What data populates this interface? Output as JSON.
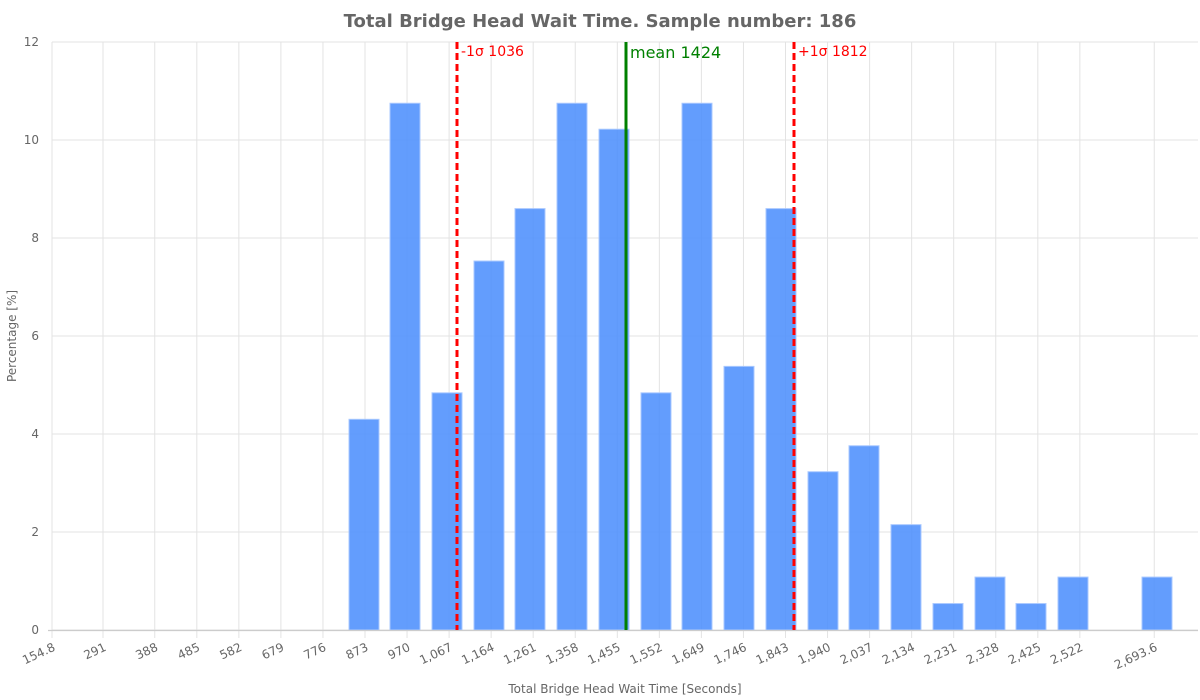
{
  "chart_data": {
    "type": "bar",
    "title": "Total Bridge Head Wait Time. Sample number: 186",
    "xlabel": "Total Bridge Head Wait Time [Seconds]",
    "ylabel": "Percentage [%]",
    "ylim": [
      0,
      12
    ],
    "yticks": [
      "0",
      "2",
      "4",
      "6",
      "8",
      "10",
      "12"
    ],
    "grid": true,
    "legend": null,
    "bar_color": "#4d8ffd",
    "xtick_labels": [
      "154.8",
      "291",
      "388",
      "485",
      "582",
      "679",
      "776",
      "873",
      "970",
      "1,067",
      "1,164",
      "1,261",
      "1,358",
      "1,455",
      "1,552",
      "1,649",
      "1,746",
      "1,843",
      "1,940",
      "2,037",
      "2,134",
      "2,231",
      "2,328",
      "2,425",
      "2,522",
      "2,693.6"
    ],
    "categories": [
      "824.5",
      "921.5",
      "1018.5",
      "1115.5",
      "1212.5",
      "1309.5",
      "1406.5",
      "1503.5",
      "1600.5",
      "1697.5",
      "1794.5",
      "1891.5",
      "1988.5",
      "2085.5",
      "2182.5",
      "2279.5",
      "2376.5",
      "2473.5",
      "2570.5",
      "2667.5"
    ],
    "values": [
      4.3,
      10.75,
      4.84,
      7.53,
      8.6,
      10.75,
      10.22,
      4.84,
      10.75,
      5.38,
      8.6,
      3.23,
      3.76,
      2.15,
      0.54,
      1.08,
      0.54,
      1.08,
      0,
      1.08
    ],
    "annotations": [
      {
        "label": "-1σ 1036",
        "x": 1036,
        "color": "#ff0000",
        "style": "dashed"
      },
      {
        "label": "mean 1424",
        "x": 1424,
        "color": "#008000",
        "style": "solid"
      },
      {
        "label": "+1σ 1812",
        "x": 1812,
        "color": "#ff0000",
        "style": "dashed"
      }
    ]
  }
}
